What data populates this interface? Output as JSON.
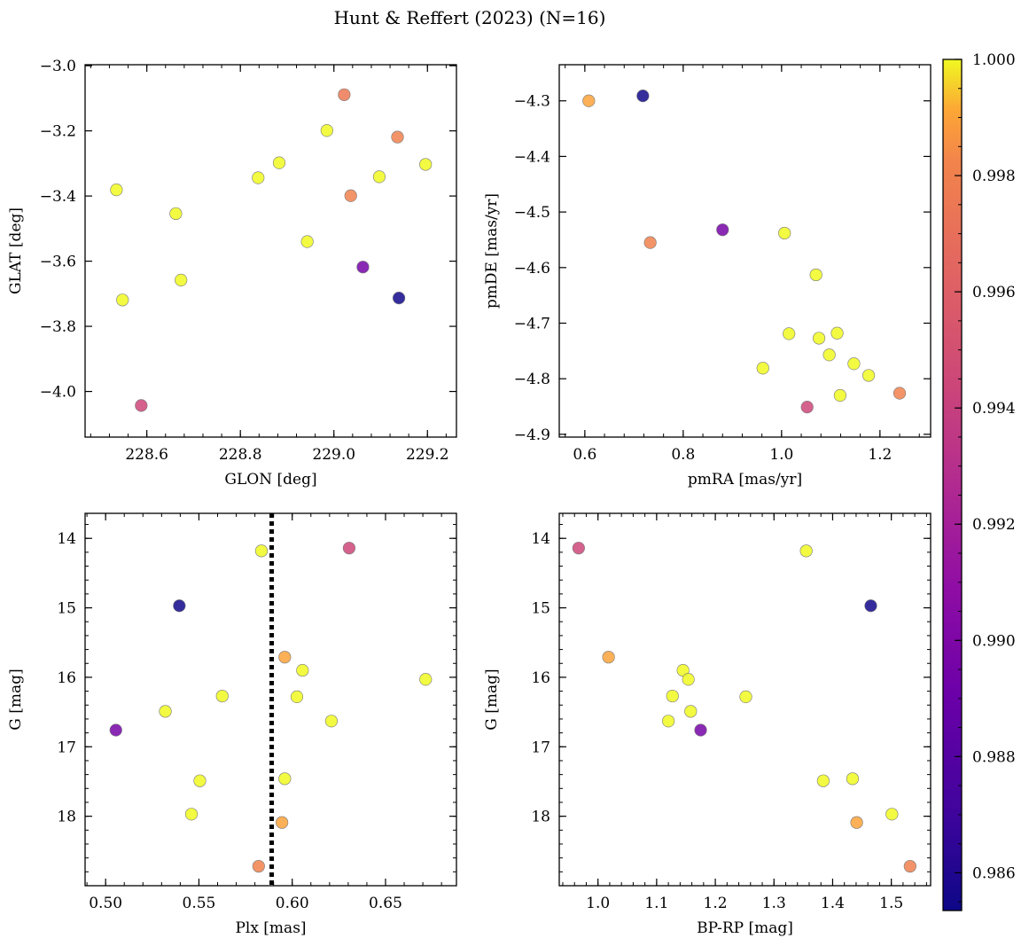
{
  "figure": {
    "title": "Hunt & Reffert (2023) (N=16)"
  },
  "colorbar": {
    "min": 0.98535,
    "max": 1.0,
    "ticks": [
      0.986,
      0.988,
      0.99,
      0.992,
      0.994,
      0.996,
      0.998,
      1.0
    ],
    "tick_labels": [
      "0.986",
      "0.988",
      "0.990",
      "0.992",
      "0.994",
      "0.996",
      "0.998",
      "1.000"
    ],
    "colormap": "plasma"
  },
  "chart_data": [
    {
      "type": "scatter",
      "xlabel": "GLON [deg]",
      "ylabel": "GLAT [deg]",
      "xlim": [
        228.468,
        229.262
      ],
      "ylim": [
        -4.14,
        -2.997
      ],
      "y_inverted": false,
      "xticks": [
        228.6,
        228.8,
        229.0,
        229.2
      ],
      "xtick_labels": [
        "228.6",
        "228.8",
        "229.0",
        "229.2"
      ],
      "yticks": [
        -3.0,
        -3.2,
        -3.4,
        -3.6,
        -3.8,
        -4.0
      ],
      "ytick_labels": [
        "−3.0",
        "−3.2",
        "−3.4",
        "−3.6",
        "−3.8",
        "−4.0"
      ],
      "points": [
        {
          "x": 228.535,
          "y": -3.381,
          "c": 1.0
        },
        {
          "x": 228.548,
          "y": -3.719,
          "c": 1.0
        },
        {
          "x": 228.588,
          "y": -4.043,
          "c": 0.9945
        },
        {
          "x": 228.662,
          "y": -3.454,
          "c": 1.0
        },
        {
          "x": 228.673,
          "y": -3.658,
          "c": 1.0
        },
        {
          "x": 228.838,
          "y": -3.344,
          "c": 1.0
        },
        {
          "x": 228.883,
          "y": -3.298,
          "c": 1.0
        },
        {
          "x": 228.943,
          "y": -3.54,
          "c": 1.0
        },
        {
          "x": 228.985,
          "y": -3.199,
          "c": 1.0
        },
        {
          "x": 229.022,
          "y": -3.089,
          "c": 0.9975
        },
        {
          "x": 229.036,
          "y": -3.399,
          "c": 0.998
        },
        {
          "x": 229.062,
          "y": -3.618,
          "c": 0.9895
        },
        {
          "x": 229.097,
          "y": -3.341,
          "c": 1.0
        },
        {
          "x": 229.136,
          "y": -3.219,
          "c": 0.998
        },
        {
          "x": 229.139,
          "y": -3.713,
          "c": 0.9855
        },
        {
          "x": 229.196,
          "y": -3.303,
          "c": 1.0
        }
      ]
    },
    {
      "type": "scatter",
      "xlabel": "pmRA [mas/yr]",
      "ylabel": "pmDE [mas/yr]",
      "xlim": [
        0.548,
        1.303
      ],
      "ylim": [
        -4.905,
        -4.235
      ],
      "y_inverted": false,
      "xticks": [
        0.6,
        0.8,
        1.0,
        1.2
      ],
      "xtick_labels": [
        "0.6",
        "0.8",
        "1.0",
        "1.2"
      ],
      "yticks": [
        -4.3,
        -4.4,
        -4.5,
        -4.6,
        -4.7,
        -4.8,
        -4.9
      ],
      "ytick_labels": [
        "−4.3",
        "−4.4",
        "−4.5",
        "−4.6",
        "−4.7",
        "−4.8",
        "−4.9"
      ],
      "points": [
        {
          "x": 0.608,
          "y": -4.3,
          "c": 0.999
        },
        {
          "x": 0.718,
          "y": -4.291,
          "c": 0.9855
        },
        {
          "x": 0.733,
          "y": -4.555,
          "c": 0.998
        },
        {
          "x": 0.88,
          "y": -4.532,
          "c": 0.9895
        },
        {
          "x": 0.962,
          "y": -4.781,
          "c": 1.0
        },
        {
          "x": 1.006,
          "y": -4.538,
          "c": 1.0
        },
        {
          "x": 1.015,
          "y": -4.719,
          "c": 1.0
        },
        {
          "x": 1.052,
          "y": -4.851,
          "c": 0.9945
        },
        {
          "x": 1.07,
          "y": -4.613,
          "c": 1.0
        },
        {
          "x": 1.076,
          "y": -4.727,
          "c": 1.0
        },
        {
          "x": 1.097,
          "y": -4.757,
          "c": 1.0
        },
        {
          "x": 1.113,
          "y": -4.718,
          "c": 1.0
        },
        {
          "x": 1.119,
          "y": -4.83,
          "c": 1.0
        },
        {
          "x": 1.147,
          "y": -4.773,
          "c": 1.0
        },
        {
          "x": 1.177,
          "y": -4.794,
          "c": 1.0
        },
        {
          "x": 1.24,
          "y": -4.826,
          "c": 0.998
        }
      ]
    },
    {
      "type": "scatter",
      "xlabel": "Plx [mas]",
      "ylabel": "G [mag]",
      "xlim": [
        0.489,
        0.688
      ],
      "ylim": [
        13.64,
        19.0
      ],
      "y_inverted": true,
      "vline": {
        "x": 0.589,
        "style": "dotted"
      },
      "xticks": [
        0.5,
        0.55,
        0.6,
        0.65
      ],
      "xtick_labels": [
        "0.50",
        "0.55",
        "0.60",
        "0.65"
      ],
      "yticks": [
        14,
        15,
        16,
        17,
        18
      ],
      "ytick_labels": [
        "14",
        "15",
        "16",
        "17",
        "18"
      ],
      "points": [
        {
          "x": 0.5835,
          "y": 14.18,
          "c": 1.0
        },
        {
          "x": 0.6305,
          "y": 14.14,
          "c": 0.9945
        },
        {
          "x": 0.5395,
          "y": 14.97,
          "c": 0.9855
        },
        {
          "x": 0.596,
          "y": 15.71,
          "c": 0.999
        },
        {
          "x": 0.6055,
          "y": 15.9,
          "c": 1.0
        },
        {
          "x": 0.6715,
          "y": 16.03,
          "c": 1.0
        },
        {
          "x": 0.5625,
          "y": 16.27,
          "c": 1.0
        },
        {
          "x": 0.6025,
          "y": 16.28,
          "c": 1.0
        },
        {
          "x": 0.532,
          "y": 16.49,
          "c": 1.0
        },
        {
          "x": 0.621,
          "y": 16.63,
          "c": 1.0
        },
        {
          "x": 0.5055,
          "y": 16.76,
          "c": 0.9895
        },
        {
          "x": 0.5505,
          "y": 17.49,
          "c": 1.0
        },
        {
          "x": 0.596,
          "y": 17.46,
          "c": 1.0
        },
        {
          "x": 0.546,
          "y": 17.97,
          "c": 1.0
        },
        {
          "x": 0.5945,
          "y": 18.09,
          "c": 0.999
        },
        {
          "x": 0.582,
          "y": 18.72,
          "c": 0.998
        }
      ]
    },
    {
      "type": "scatter",
      "xlabel": "BP-RP [mag]",
      "ylabel": "G [mag]",
      "xlim": [
        0.934,
        1.567
      ],
      "ylim": [
        13.64,
        19.0
      ],
      "y_inverted": true,
      "xticks": [
        1.0,
        1.1,
        1.2,
        1.3,
        1.4,
        1.5
      ],
      "xtick_labels": [
        "1.0",
        "1.1",
        "1.2",
        "1.3",
        "1.4",
        "1.5"
      ],
      "yticks": [
        14,
        15,
        16,
        17,
        18
      ],
      "ytick_labels": [
        "14",
        "15",
        "16",
        "17",
        "18"
      ],
      "points": [
        {
          "x": 0.967,
          "y": 14.14,
          "c": 0.9945
        },
        {
          "x": 1.355,
          "y": 14.18,
          "c": 1.0
        },
        {
          "x": 1.465,
          "y": 14.97,
          "c": 0.9855
        },
        {
          "x": 1.018,
          "y": 15.71,
          "c": 0.999
        },
        {
          "x": 1.145,
          "y": 15.9,
          "c": 1.0
        },
        {
          "x": 1.154,
          "y": 16.03,
          "c": 1.0
        },
        {
          "x": 1.127,
          "y": 16.27,
          "c": 1.0
        },
        {
          "x": 1.252,
          "y": 16.28,
          "c": 1.0
        },
        {
          "x": 1.158,
          "y": 16.49,
          "c": 1.0
        },
        {
          "x": 1.12,
          "y": 16.63,
          "c": 1.0
        },
        {
          "x": 1.175,
          "y": 16.76,
          "c": 0.9895
        },
        {
          "x": 1.384,
          "y": 17.49,
          "c": 1.0
        },
        {
          "x": 1.434,
          "y": 17.46,
          "c": 1.0
        },
        {
          "x": 1.501,
          "y": 17.97,
          "c": 1.0
        },
        {
          "x": 1.441,
          "y": 18.09,
          "c": 0.999
        },
        {
          "x": 1.532,
          "y": 18.72,
          "c": 0.998
        }
      ]
    }
  ]
}
